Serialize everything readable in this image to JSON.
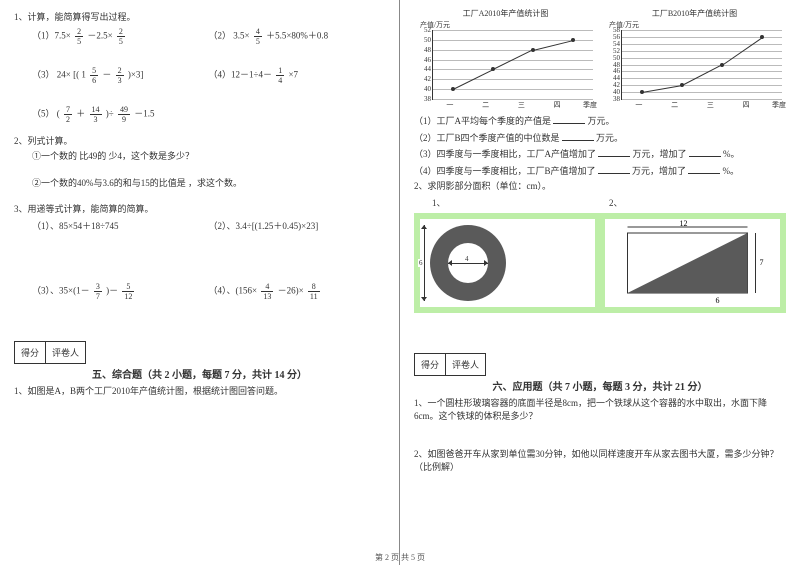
{
  "colors": {
    "text": "#333333",
    "background": "#ffffff",
    "grid": "#bbbbbb",
    "axis": "#333333",
    "shade_dark": "#5a5a5a",
    "panel_green": "#bdeea7",
    "line_series": "#333333"
  },
  "fonts": {
    "body_pt": 9,
    "chart_title_pt": 8,
    "tick_pt": 7,
    "section_title_pt": 10
  },
  "left": {
    "q1_title": "1、计算，能简算得写出过程。",
    "q1_items": {
      "a_label": "（1）7.5×",
      "a_frac_n": "2",
      "a_frac_d": "5",
      "a_mid": "－2.5×",
      "a_frac2_n": "2",
      "a_frac2_d": "5",
      "b_label": "（2）",
      "b_expr_pre": "3.5×",
      "b_frac_n": "4",
      "b_frac_d": "5",
      "b_expr_post": "＋5.5×80%＋0.8",
      "c_label": "（3）",
      "c_pre": "24×",
      "c_bracket_open": "[(",
      "c_mix": "1",
      "c_f1_n": "5",
      "c_f1_d": "6",
      "c_minus": "－",
      "c_f2_n": "2",
      "c_f2_d": "3",
      "c_bracket_close": ")×3]",
      "d_label": "（4）12－1÷4－",
      "d_frac_n": "1",
      "d_frac_d": "4",
      "d_post": "×7",
      "e_label": "（5）",
      "e_open": "(",
      "e_f1_n": "7",
      "e_f1_d": "2",
      "e_plus": "＋",
      "e_f2_n": "14",
      "e_f2_d": "3",
      "e_close": ")÷",
      "e_f3_n": "49",
      "e_f3_d": "9",
      "e_post": "－1.5"
    },
    "q2_title": "2、列式计算。",
    "q2_a": "①一个数的 比49的 少4，这个数是多少？",
    "q2_b": "②一个数的40%与3.6的和与15的比值是 ，求这个数。",
    "q3_title": "3、用递等式计算，能简算的简算。",
    "q3_items": {
      "a": "（1）、85×54＋18÷745",
      "b": "（2）、3.4÷[(1.25＋0.45)×23]",
      "c_label": "（3）、35×(1－",
      "c_f1_n": "3",
      "c_f1_d": "7",
      "c_mid": ")－",
      "c_f2_n": "5",
      "c_f2_d": "12",
      "d_label": "（4）、(156×",
      "d_f1_n": "4",
      "d_f1_d": "13",
      "d_mid": "－26)×",
      "d_f2_n": "8",
      "d_f2_d": "11"
    },
    "score_labels": {
      "score": "得分",
      "reviewer": "评卷人"
    },
    "section5_title": "五、综合题（共 2 小题，每题 7 分，共计 14 分）",
    "section5_q1": "1、如图是A，B两个工厂2010年产值统计图，根据统计图回答问题。"
  },
  "right": {
    "chartA": {
      "title": "工厂A2010年产值统计图",
      "ylabel": "产值/万元",
      "xlabel": "季度",
      "ylim": [
        38,
        52
      ],
      "ytick_step": 2,
      "yticks": [
        38,
        40,
        42,
        44,
        46,
        48,
        50,
        52
      ],
      "categories": [
        "一",
        "二",
        "三",
        "四"
      ],
      "values": [
        40,
        44,
        48,
        50
      ],
      "type": "line",
      "line_color": "#333333",
      "grid_color": "#bbbbbb",
      "background_color": "#ffffff"
    },
    "chartB": {
      "title": "工厂B2010年产值统计图",
      "ylabel": "产值/万元",
      "xlabel": "季度",
      "ylim": [
        38,
        58
      ],
      "ytick_step": 2,
      "yticks": [
        38,
        40,
        42,
        44,
        46,
        48,
        50,
        52,
        54,
        56,
        58
      ],
      "categories": [
        "一",
        "二",
        "三",
        "四"
      ],
      "values": [
        40,
        42,
        48,
        56
      ],
      "type": "line",
      "line_color": "#333333",
      "grid_color": "#bbbbbb",
      "background_color": "#ffffff"
    },
    "chart_q": {
      "l1_pre": "（1）工厂A平均每个季度的产值是",
      "l1_post": "万元。",
      "l2_pre": "（2）工厂B四个季度产值的中位数是",
      "l2_post": "万元。",
      "l3_pre": "（3）四季度与一季度相比，工厂A产值增加了",
      "l3_mid": "万元，增加了",
      "l3_post": "%。",
      "l4_pre": "（4）四季度与一季度相比，工厂B产值增加了",
      "l4_mid": "万元，增加了",
      "l4_post": "%。"
    },
    "shade_title": "2、求阴影部分面积（单位：cm）。",
    "shade_labels": {
      "a": "1、",
      "b": "2、"
    },
    "fig1": {
      "type": "ring",
      "inner_diameter_label": "4",
      "outer_diameter_label": "6",
      "shade_color": "#5a5a5a",
      "inner_color": "#ffffff"
    },
    "fig2": {
      "type": "triangle_in_rect",
      "top_label": "12",
      "right_label": "7",
      "bottom_label": "6",
      "shade_color": "#5a5a5a",
      "bg_color": "#ffffff"
    },
    "score_labels": {
      "score": "得分",
      "reviewer": "评卷人"
    },
    "section6_title": "六、应用题（共 7 小题，每题 3 分，共计 21 分）",
    "section6_q1": "1、一个圆柱形玻璃容器的底面半径是8cm，把一个铁球从这个容器的水中取出，水面下降6cm。这个铁球的体积是多少？",
    "section6_q2": "2、如图爸爸开车从家到单位需30分钟，如他以同样速度开车从家去图书大厦，需多少分钟？（比例解）"
  },
  "footer": "第 2 页 共 5 页"
}
